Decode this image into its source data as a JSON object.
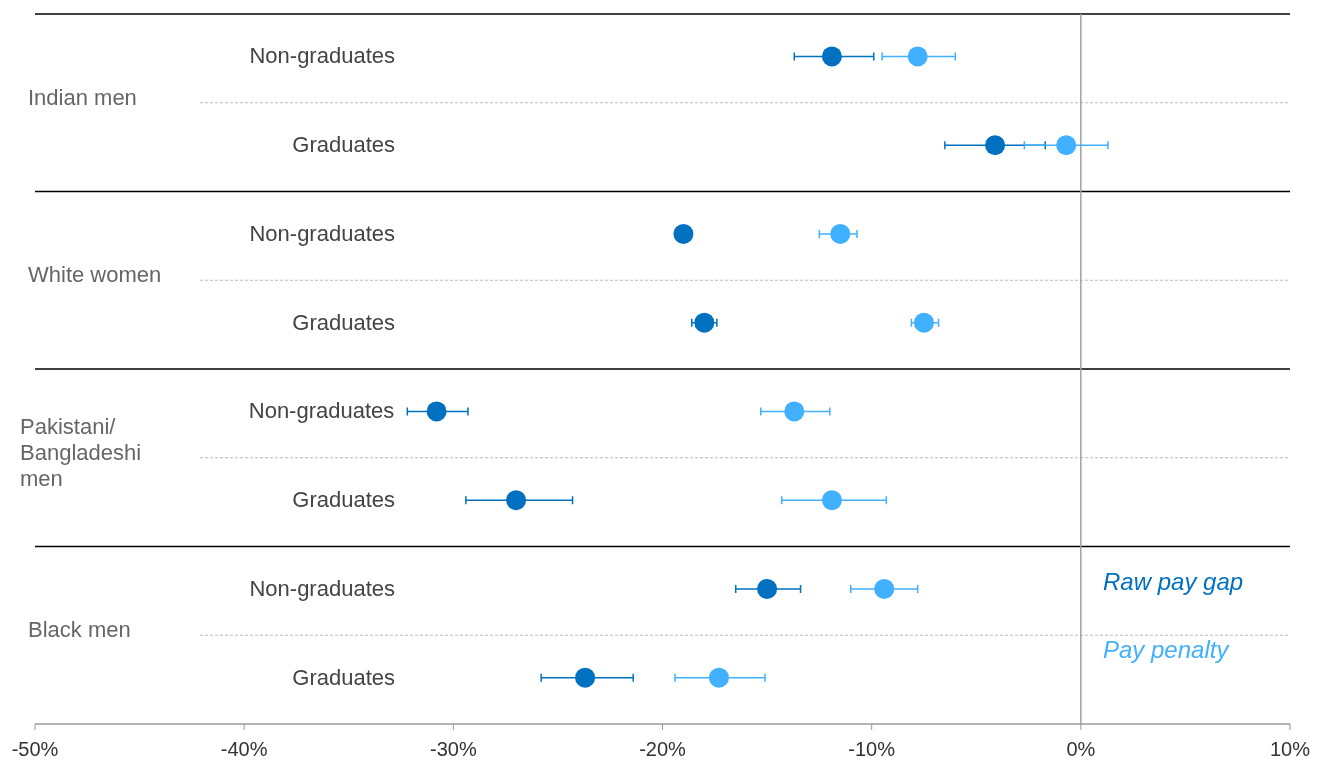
{
  "chart_data": {
    "type": "scatter",
    "orientation": "horizontal",
    "categories": [
      "Non-graduates",
      "Graduates",
      "Non-graduates",
      "Graduates",
      "Non-graduates",
      "Graduates",
      "Non-graduates",
      "Graduates"
    ],
    "annotations": [
      "Indian men",
      "White women",
      "Pakistani/ Bangladeshi men",
      "Black men"
    ],
    "series": [
      {
        "name": "Raw pay gap",
        "color": "#0070c0",
        "values": [
          -11.9,
          -4.1,
          -19.0,
          -18.0,
          -30.8,
          -27.0,
          -15.0,
          -23.7
        ],
        "errors": [
          [
            -13.7,
            -9.9
          ],
          [
            -6.5,
            -1.7
          ],
          null,
          [
            -18.6,
            -17.4
          ],
          [
            -32.2,
            -29.3
          ],
          [
            -29.4,
            -24.3
          ],
          [
            -16.5,
            -13.4
          ],
          [
            -25.8,
            -21.4
          ]
        ]
      },
      {
        "name": "Pay penalty",
        "color": "#41b0ff",
        "values": [
          -7.8,
          -0.7,
          -11.5,
          -7.5,
          -13.7,
          -11.9,
          -9.4,
          -17.3
        ],
        "errors": [
          [
            -9.5,
            -6.0
          ],
          [
            -2.7,
            1.3
          ],
          [
            -12.5,
            -10.7
          ],
          [
            -8.1,
            -6.8
          ],
          [
            -15.3,
            -12.0
          ],
          [
            -14.3,
            -9.3
          ],
          [
            -11.0,
            -7.8
          ],
          [
            -19.4,
            -15.1
          ]
        ]
      }
    ],
    "xlim": [
      -50,
      10
    ],
    "xticks": [
      {
        "value": -50,
        "label": "-50%"
      },
      {
        "value": -40,
        "label": "-40%"
      },
      {
        "value": -30,
        "label": "-30%"
      },
      {
        "value": -20,
        "label": "-20%"
      },
      {
        "value": -10,
        "label": "-10%"
      },
      {
        "value": 0,
        "label": "0%"
      },
      {
        "value": 10,
        "label": "10%"
      }
    ],
    "ref_lines": [
      {
        "axis": "x",
        "value": 0,
        "color": "#a0a0a0"
      }
    ],
    "legend": "bottom right",
    "marker": "circle",
    "grid": false
  }
}
